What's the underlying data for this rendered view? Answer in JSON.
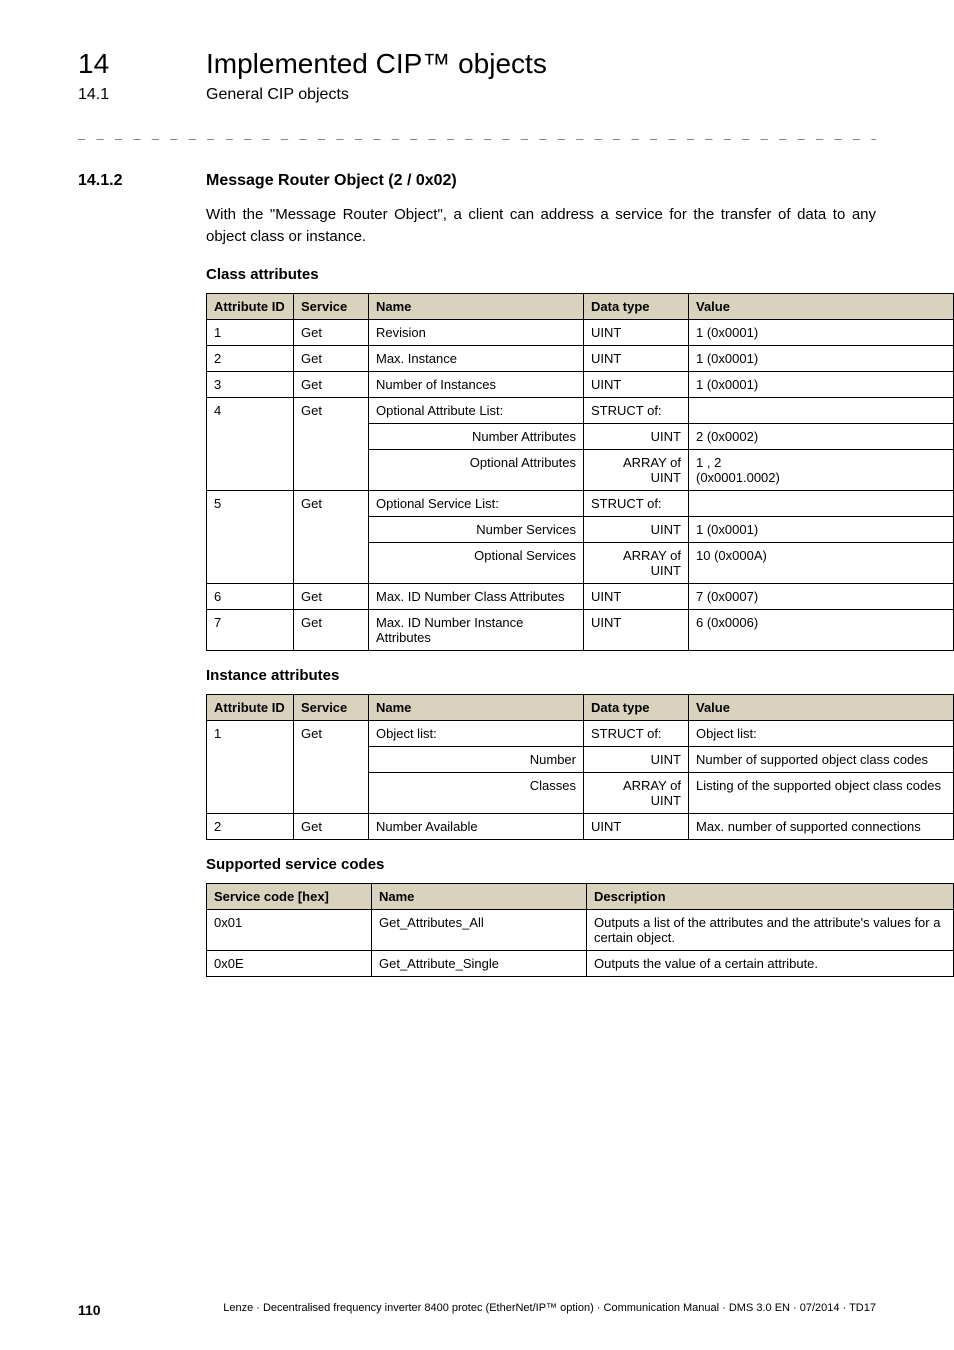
{
  "header": {
    "chapter_num": "14",
    "chapter_title": "Implemented CIP™ objects",
    "sub_num": "14.1",
    "sub_title": "General CIP objects"
  },
  "section": {
    "num": "14.1.2",
    "title": "Message Router Object (2 / 0x02)"
  },
  "intro": "With the \"Message Router Object\", a client can address a service for the transfer of data to any object class or instance.",
  "subheads": {
    "class_attr": "Class attributes",
    "inst_attr": "Instance attributes",
    "svc_codes": "Supported service codes"
  },
  "table_headers": {
    "attr_id": "Attribute ID",
    "service": "Service",
    "name": "Name",
    "data_type": "Data type",
    "value": "Value",
    "svc_code": "Service code [hex]",
    "description": "Description"
  },
  "class_attr_rows": [
    {
      "id": "1",
      "svc": "Get",
      "name": "Revision",
      "dt": "UINT",
      "val": "1 (0x0001)"
    },
    {
      "id": "2",
      "svc": "Get",
      "name": "Max. Instance",
      "dt": "UINT",
      "val": "1 (0x0001)"
    },
    {
      "id": "3",
      "svc": "Get",
      "name": "Number of Instances",
      "dt": "UINT",
      "val": "1 (0x0001)"
    }
  ],
  "class_attr_4": {
    "id": "4",
    "svc": "Get",
    "name": "Optional Attribute List:",
    "dt": "STRUCT of:",
    "val": "",
    "sub1_name": "Number Attributes",
    "sub1_dt": "UINT",
    "sub1_val": "2 (0x0002)",
    "sub2_name": "Optional Attributes",
    "sub2_dt": "ARRAY of UINT",
    "sub2_val": "1 , 2\n(0x0001.0002)"
  },
  "class_attr_5": {
    "id": "5",
    "svc": "Get",
    "name": "Optional Service List:",
    "dt": "STRUCT of:",
    "val": "",
    "sub1_name": "Number Services",
    "sub1_dt": "UINT",
    "sub1_val": "1 (0x0001)",
    "sub2_name": "Optional Services",
    "sub2_dt": "ARRAY of UINT",
    "sub2_val": "10 (0x000A)"
  },
  "class_attr_tail": [
    {
      "id": "6",
      "svc": "Get",
      "name": "Max. ID Number Class Attributes",
      "dt": "UINT",
      "val": "7 (0x0007)"
    },
    {
      "id": "7",
      "svc": "Get",
      "name": "Max. ID Number Instance Attributes",
      "dt": "UINT",
      "val": "6 (0x0006)"
    }
  ],
  "inst_attr_1": {
    "id": "1",
    "svc": "Get",
    "name": "Object list:",
    "dt": "STRUCT of:",
    "val": "Object list:",
    "sub1_name": "Number",
    "sub1_dt": "UINT",
    "sub1_val": "Number of supported object class codes",
    "sub2_name": "Classes",
    "sub2_dt": "ARRAY of UINT",
    "sub2_val": "Listing of the supported object class codes"
  },
  "inst_attr_tail": [
    {
      "id": "2",
      "svc": "Get",
      "name": "Number Available",
      "dt": "UINT",
      "val": "Max. number of supported connections"
    }
  ],
  "svc_rows": [
    {
      "code": "0x01",
      "name": "Get_Attributes_All",
      "desc": "Outputs a list of the attributes and the attribute's values for a certain object."
    },
    {
      "code": "0x0E",
      "name": "Get_Attribute_Single",
      "desc": "Outputs the value of a certain attribute."
    }
  ],
  "footer": {
    "page": "110",
    "text": "Lenze · Decentralised frequency inverter 8400 protec (EtherNet/IP™ option) · Communication Manual · DMS 3.0 EN · 07/2014 · TD17"
  }
}
